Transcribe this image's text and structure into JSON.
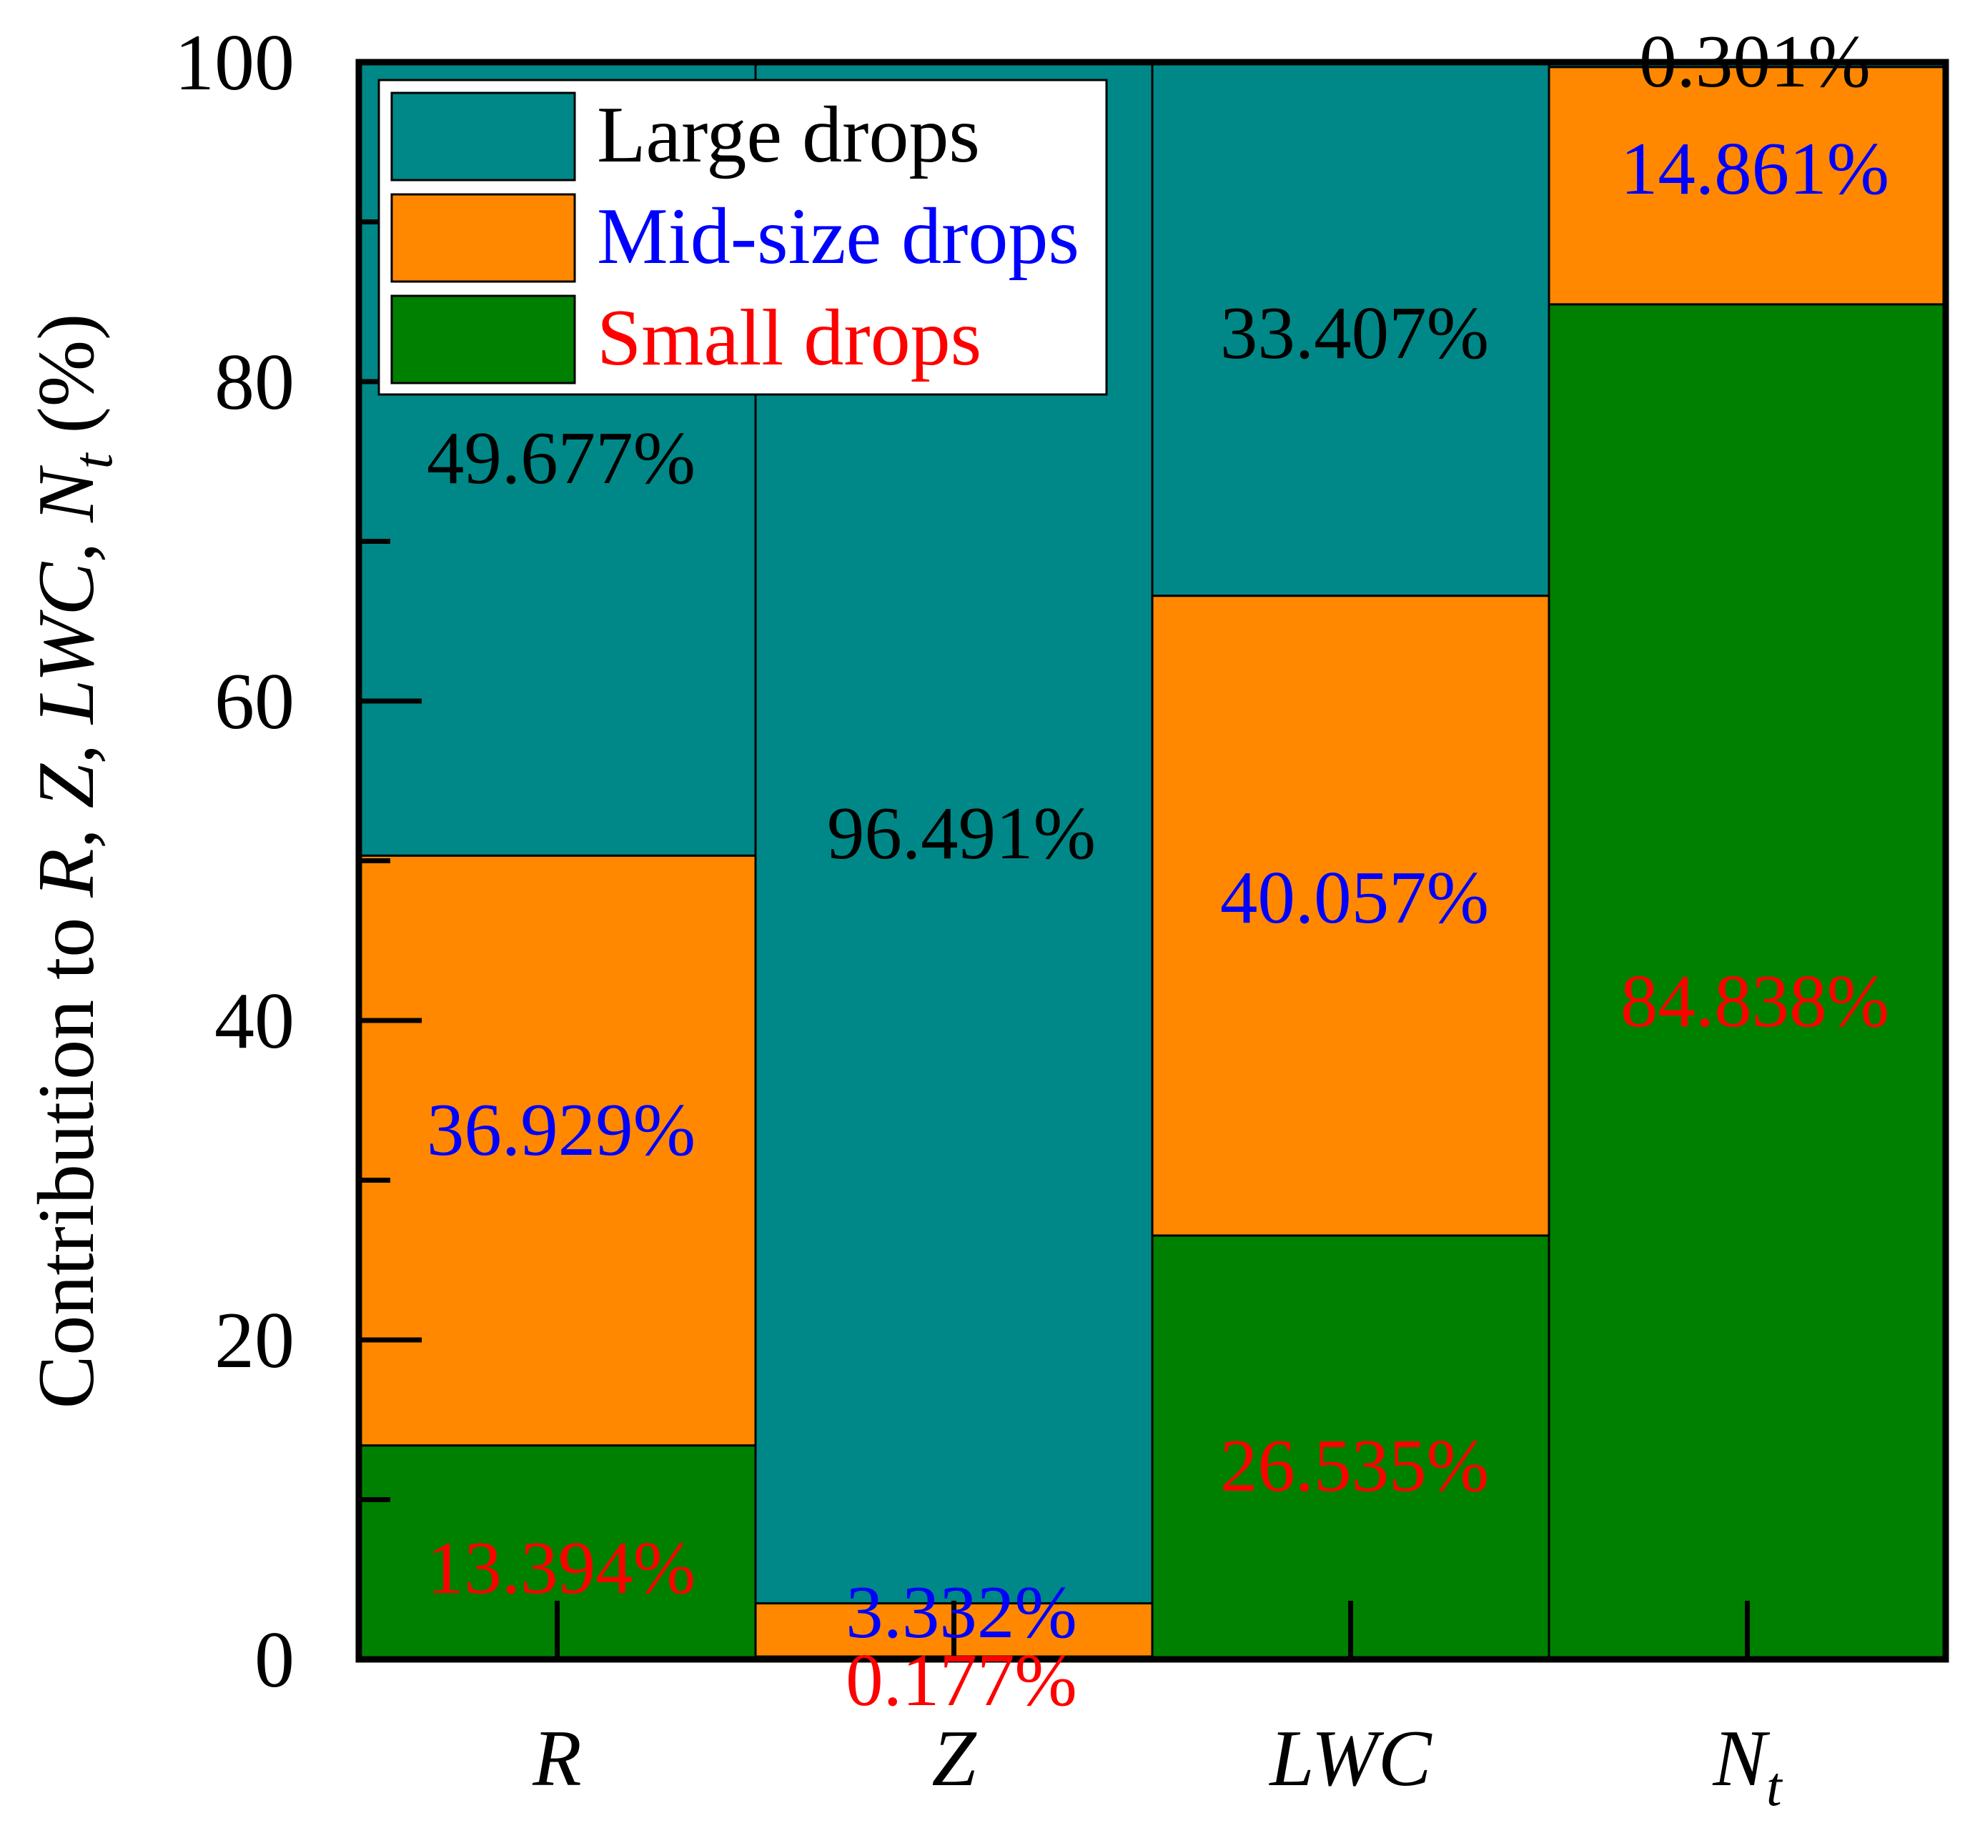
{
  "chart_data": {
    "type": "bar",
    "stacked": true,
    "categories": [
      "R",
      "Z",
      "LWC",
      "N"
    ],
    "category_subscripts": [
      "",
      "",
      "",
      "t"
    ],
    "ylabel_prefix": "Contribution to ",
    "ylabel_vars": "R, Z, LWC, N",
    "ylabel_subscript": "t",
    "ylabel_suffix": " (%)",
    "ylim": [
      0,
      100
    ],
    "yticks": [
      0,
      20,
      40,
      60,
      80,
      100
    ],
    "legend_position": "top-left",
    "series": [
      {
        "name": "Small drops",
        "color": "#008000",
        "label_color": "#ff0000",
        "values": [
          13.394,
          0.177,
          26.535,
          84.838
        ],
        "labels": [
          "13.394%",
          "0.177%",
          "26.535%",
          "84.838%"
        ]
      },
      {
        "name": "Mid-size drops",
        "color": "#ff8800",
        "label_color": "#0000ff",
        "values": [
          36.929,
          3.332,
          40.057,
          14.861
        ],
        "labels": [
          "36.929%",
          "3.332%",
          "40.057%",
          "14.861%"
        ]
      },
      {
        "name": "Large drops",
        "color": "#008888",
        "label_color": "#000000",
        "values": [
          49.677,
          96.491,
          33.407,
          0.301
        ],
        "labels": [
          "49.677%",
          "96.491%",
          "33.407%",
          "0.301%"
        ]
      }
    ]
  }
}
